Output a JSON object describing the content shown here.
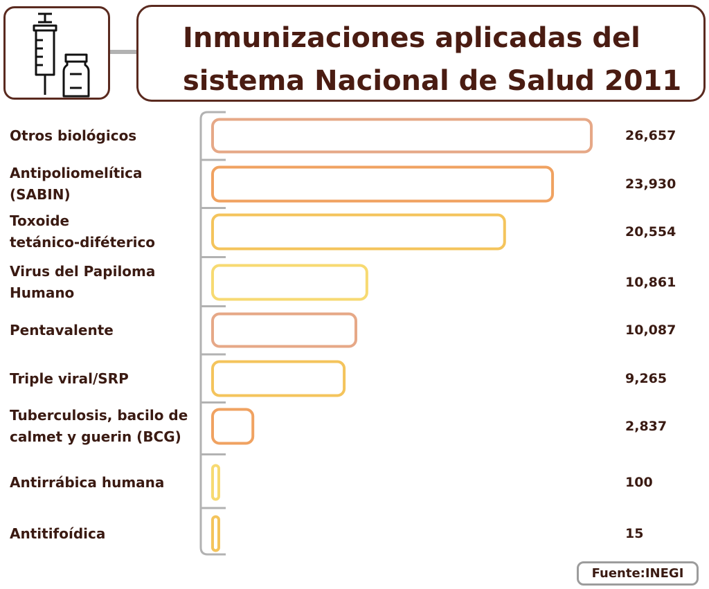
{
  "header": {
    "title_line1": "Inmunizaciones aplicadas del",
    "title_line2": "sistema Nacional de Salud 2011",
    "icon": "syringe-and-vial-icon"
  },
  "chart_data": {
    "type": "bar",
    "orientation": "horizontal",
    "title": "Inmunizaciones aplicadas del sistema Nacional de Salud 2011",
    "categories": [
      [
        "Otros biológicos"
      ],
      [
        "Antipoliomelítica",
        "(SABIN)"
      ],
      [
        "Toxoide",
        "tetánico-diféterico"
      ],
      [
        "Virus del Papiloma",
        "Humano"
      ],
      [
        "Pentavalente"
      ],
      [
        "Triple viral/SRP"
      ],
      [
        "Tuberculosis, bacilo de",
        "calmet  y guerin (BCG)"
      ],
      [
        "Antirrábica humana"
      ],
      [
        "Antitifoídica"
      ]
    ],
    "values": [
      26657,
      23930,
      20554,
      10861,
      10087,
      9265,
      2837,
      100,
      15
    ],
    "value_labels": [
      "26,657",
      "23,930",
      "20,554",
      "10,861",
      "10,087",
      "9,265",
      "2,837",
      "100",
      "15"
    ],
    "bar_colors": [
      "#e6a887",
      "#f0a261",
      "#f4c45c",
      "#f7da72",
      "#e6a887",
      "#f4c45c",
      "#f0a261",
      "#f7da72",
      "#f4c45c"
    ],
    "xlim": [
      0,
      26657
    ],
    "grid": false,
    "legend": "none"
  },
  "footer": {
    "source": "Fuente:INEGI"
  },
  "colors": {
    "dark_brown": "#4a1c12",
    "gray": "#b2b2b2"
  }
}
